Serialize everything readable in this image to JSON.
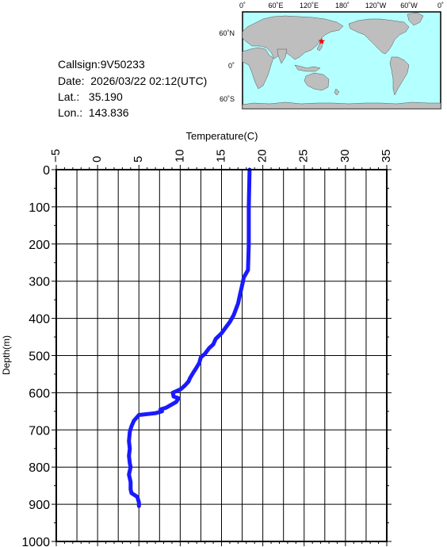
{
  "station": {
    "callsign_label": "Callsign:",
    "callsign": "9V50233",
    "date_label": "Date:",
    "date": "2026/03/22 02:12(UTC)",
    "lat_label": "Lat.:",
    "lat": "35.190",
    "lon_label": "Lon.:",
    "lon": "143.836"
  },
  "map": {
    "lon_ticks": [
      "0˚",
      "60˚E",
      "120˚E",
      "180˚",
      "120˚W",
      "60˚W",
      "0˚"
    ],
    "lat_ticks": [
      "60˚N",
      "0˚",
      "60˚S"
    ],
    "ocean_color": "#b4ffff",
    "land_color": "#bebebe",
    "marker_color": "#ff0000",
    "marker": {
      "lat": 35.19,
      "lon": 143.836
    }
  },
  "chart_data": {
    "type": "line",
    "xlabel": "Temperature(C)",
    "ylabel": "Depth(m)",
    "xlim": [
      -5,
      35
    ],
    "ylim": [
      1000,
      0
    ],
    "x_ticks": [
      -5,
      0,
      5,
      10,
      15,
      20,
      25,
      30,
      35
    ],
    "y_ticks": [
      0,
      100,
      200,
      300,
      400,
      500,
      600,
      700,
      800,
      900,
      1000
    ],
    "grid": true,
    "line_color": "#1a1aff",
    "series": [
      {
        "temperature": [
          18.4,
          18.3,
          18.3,
          18.2,
          17.7,
          17.5,
          17.2,
          17.0,
          16.5,
          16.0,
          15.5,
          15.0,
          14.3,
          14.0,
          13.5,
          13.0,
          12.5,
          12.3,
          11.9,
          11.6,
          11.2,
          11.0,
          10.6,
          10.1,
          9.6,
          9.1,
          9.2,
          9.8,
          9.5,
          8.3,
          7.6,
          7.8,
          7.0,
          5.0,
          4.4,
          4.1,
          3.9,
          3.8,
          3.9,
          3.8,
          3.9,
          4.0,
          3.8,
          4.0,
          4.0,
          4.1,
          4.8,
          5.0,
          5.0
        ],
        "depth": [
          0,
          100,
          200,
          270,
          290,
          310,
          340,
          360,
          390,
          410,
          425,
          440,
          455,
          470,
          480,
          495,
          505,
          520,
          535,
          545,
          560,
          570,
          580,
          590,
          595,
          600,
          610,
          615,
          625,
          640,
          645,
          650,
          655,
          660,
          675,
          690,
          705,
          730,
          750,
          770,
          790,
          800,
          820,
          840,
          860,
          870,
          880,
          895,
          905
        ]
      }
    ]
  }
}
